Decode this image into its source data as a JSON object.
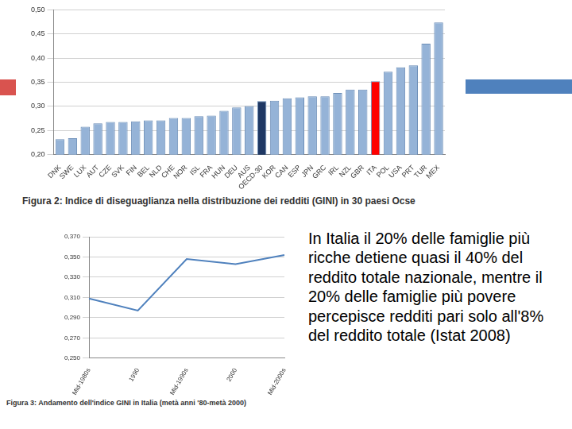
{
  "chart_data": [
    {
      "type": "bar",
      "title": "Figura 2: Indice di diseguaglianza nella distribuzione dei redditi (GINI) in 30 paesi Ocse",
      "categories": [
        "DNK",
        "SWE",
        "LUX",
        "AUT",
        "CZE",
        "SVK",
        "FIN",
        "BEL",
        "NLD",
        "CHE",
        "NOR",
        "ISL",
        "FRA",
        "HUN",
        "DEU",
        "AUS",
        "OECD-30",
        "KOR",
        "CAN",
        "ESP",
        "JPN",
        "GRC",
        "IRL",
        "NZL",
        "GBR",
        "ITA",
        "POL",
        "USA",
        "PRT",
        "TUR",
        "MEX"
      ],
      "values": [
        0.232,
        0.234,
        0.258,
        0.265,
        0.268,
        0.268,
        0.269,
        0.271,
        0.271,
        0.276,
        0.276,
        0.28,
        0.281,
        0.291,
        0.298,
        0.301,
        0.311,
        0.312,
        0.317,
        0.319,
        0.321,
        0.321,
        0.328,
        0.335,
        0.335,
        0.352,
        0.372,
        0.381,
        0.385,
        0.43,
        0.474
      ],
      "colors": [
        "#95b3d7",
        "#95b3d7",
        "#95b3d7",
        "#95b3d7",
        "#95b3d7",
        "#95b3d7",
        "#95b3d7",
        "#95b3d7",
        "#95b3d7",
        "#95b3d7",
        "#95b3d7",
        "#95b3d7",
        "#95b3d7",
        "#95b3d7",
        "#95b3d7",
        "#95b3d7",
        "#1f3864",
        "#95b3d7",
        "#95b3d7",
        "#95b3d7",
        "#95b3d7",
        "#95b3d7",
        "#95b3d7",
        "#95b3d7",
        "#95b3d7",
        "#ff0000",
        "#95b3d7",
        "#95b3d7",
        "#95b3d7",
        "#95b3d7",
        "#95b3d7"
      ],
      "ylim": [
        0.2,
        0.5
      ],
      "yticks": [
        {
          "value": 0.2,
          "label": "0,20"
        },
        {
          "value": 0.25,
          "label": "0,25"
        },
        {
          "value": 0.3,
          "label": "0,30"
        },
        {
          "value": 0.35,
          "label": "0,35"
        },
        {
          "value": 0.4,
          "label": "0,40"
        },
        {
          "value": 0.45,
          "label": "0,45"
        },
        {
          "value": 0.5,
          "label": "0,50"
        }
      ],
      "grid": true
    },
    {
      "type": "line",
      "title": "Figura 3: Andamento dell'indice GINI in Italia (metà anni '80-metà 2000)",
      "categories": [
        "Mid-1980s",
        "1990",
        "Mid-1990s",
        "2000",
        "Mid-2000s"
      ],
      "values": [
        0.309,
        0.297,
        0.348,
        0.343,
        0.352
      ],
      "color": "#4f81bd",
      "marker": "none",
      "ylim": [
        0.25,
        0.37
      ],
      "yticks": [
        {
          "value": 0.25,
          "label": "0,250"
        },
        {
          "value": 0.27,
          "label": "0,270"
        },
        {
          "value": 0.29,
          "label": "0,290"
        },
        {
          "value": 0.31,
          "label": "0,310"
        },
        {
          "value": 0.33,
          "label": "0,330"
        },
        {
          "value": 0.35,
          "label": "0,350"
        },
        {
          "value": 0.37,
          "label": "0,370"
        }
      ],
      "grid": true
    }
  ],
  "text": "In Italia il 20% delle famiglie più ricche detiene quasi il 40% del reddito totale nazionale, mentre il 20% delle famiglie più povere percepisce redditi pari solo all'8% del reddito totale (Istat 2008)"
}
